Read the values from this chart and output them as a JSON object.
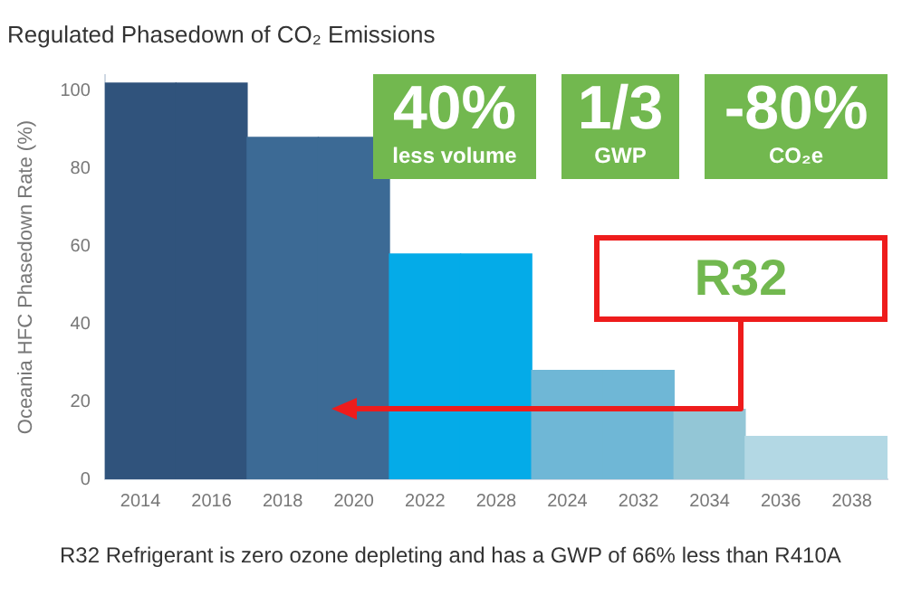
{
  "chart_data": {
    "type": "bar",
    "title": "Regulated Phasedown of CO₂ Emissions",
    "ylabel": "Oceania HFC Phasedown Rate (%)",
    "categories": [
      "2014",
      "2016",
      "2018",
      "2020",
      "2022",
      "2028",
      "2024",
      "2032",
      "2034",
      "2036",
      "2038"
    ],
    "values": [
      102,
      102,
      88,
      88,
      58,
      58,
      28,
      28,
      18,
      11,
      11
    ],
    "colors": [
      "#30537c",
      "#30537c",
      "#3c6a95",
      "#3c6a95",
      "#04abe8",
      "#04abe8",
      "#6fb7d6",
      "#6fb7d6",
      "#93c6d6",
      "#b3d8e4",
      "#b3d8e4"
    ],
    "ylim": [
      0,
      104
    ],
    "yticks": [
      0,
      20,
      40,
      60,
      80,
      100
    ],
    "grid": false,
    "legend": false,
    "annotations": [
      "40%\nless volume",
      "1/3\nGWP",
      "-80%\nCO₂e",
      "R32",
      "R32 Refrigerant is zero ozone depleting and has a GWP of 66% less than R410A"
    ]
  }
}
